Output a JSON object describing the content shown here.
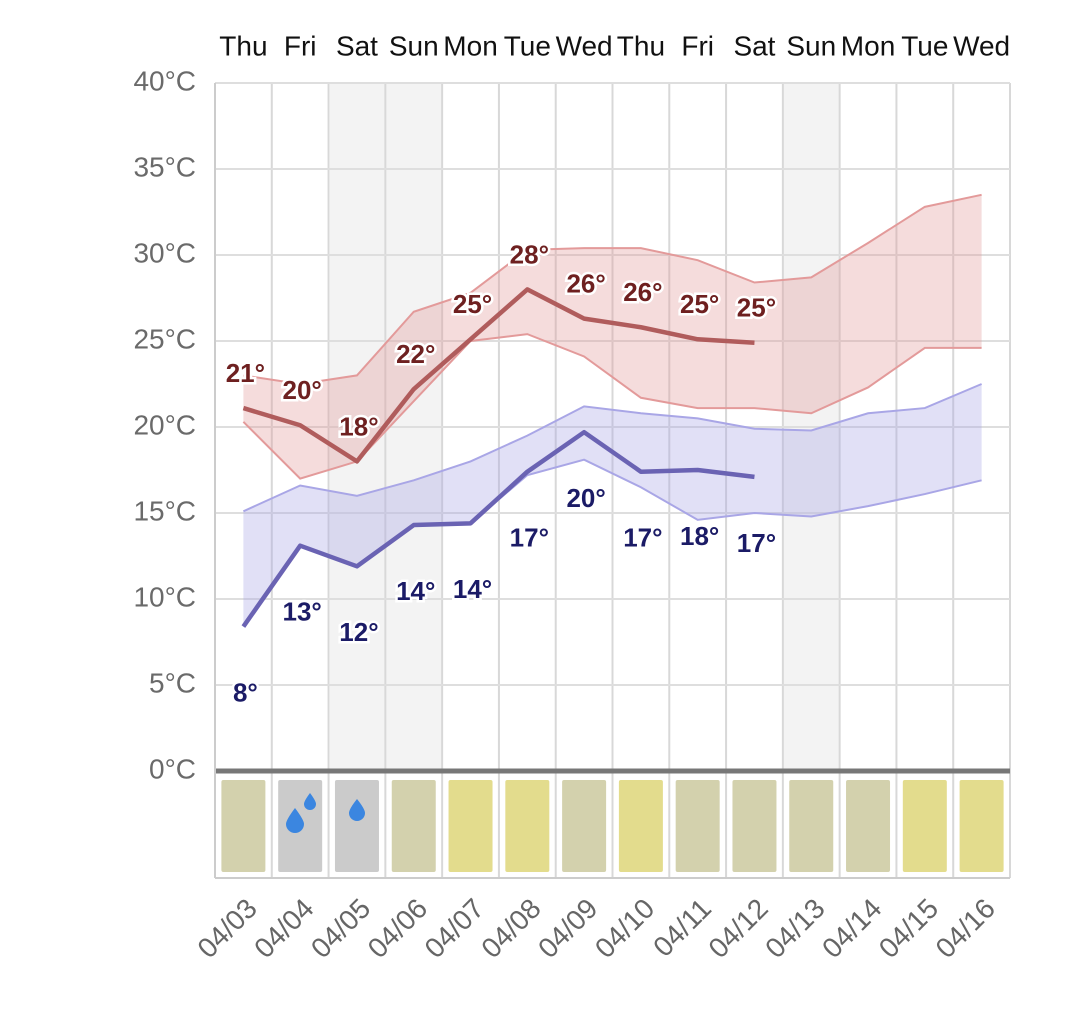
{
  "chart_data": {
    "type": "line",
    "categories": [
      "04/03",
      "04/04",
      "04/05",
      "04/06",
      "04/07",
      "04/08",
      "04/09",
      "04/10",
      "04/11",
      "04/12",
      "04/13",
      "04/14",
      "04/15",
      "04/16"
    ],
    "weekdays": [
      "Thu",
      "Fri",
      "Sat",
      "Sun",
      "Mon",
      "Tue",
      "Wed",
      "Thu",
      "Fri",
      "Sat",
      "Sun",
      "Mon",
      "Tue",
      "Wed"
    ],
    "ylim": [
      0,
      40
    ],
    "yticks": [
      {
        "value": 0,
        "label": "0°C"
      },
      {
        "value": 5,
        "label": "5°C"
      },
      {
        "value": 10,
        "label": "10°C"
      },
      {
        "value": 15,
        "label": "15°C"
      },
      {
        "value": 20,
        "label": "20°C"
      },
      {
        "value": 25,
        "label": "25°C"
      },
      {
        "value": 30,
        "label": "30°C"
      },
      {
        "value": 35,
        "label": "35°C"
      },
      {
        "value": 40,
        "label": "40°C"
      }
    ],
    "grid": true,
    "series": [
      {
        "color": "#b05c5c",
        "label_color": "#6e2020",
        "values": [
          21.1,
          20.1,
          18.0,
          22.2,
          25.1,
          28.0,
          26.3,
          25.8,
          25.1,
          24.9,
          null,
          null,
          null,
          null
        ],
        "value_labels": [
          "21°",
          "20°",
          "18°",
          "22°",
          "25°",
          "28°",
          "26°",
          "26°",
          "25°",
          "25°",
          null,
          null,
          null,
          null
        ]
      },
      {
        "color": "#6a63b3",
        "label_color": "#1b1b66",
        "values": [
          8.4,
          13.1,
          11.9,
          14.3,
          14.4,
          17.4,
          19.7,
          17.4,
          17.5,
          17.1,
          null,
          null,
          null,
          null
        ],
        "value_labels": [
          "8°",
          "13°",
          "12°",
          "14°",
          "14°",
          "17°",
          "20°",
          "17°",
          "18°",
          "17°",
          null,
          null,
          null,
          null
        ]
      }
    ],
    "bands": [
      {
        "color": "#e39a9a",
        "high": [
          23.0,
          22.5,
          23.0,
          26.7,
          27.8,
          30.3,
          30.4,
          30.4,
          29.7,
          28.4,
          28.7,
          30.7,
          32.8,
          33.5
        ],
        "low": [
          20.3,
          17.0,
          18.0,
          21.5,
          25.0,
          25.4,
          24.1,
          21.7,
          21.1,
          21.1,
          20.8,
          22.3,
          24.6,
          24.6
        ]
      },
      {
        "color": "#a9a6e6",
        "high": [
          15.1,
          16.6,
          16.0,
          16.9,
          18.0,
          19.5,
          21.2,
          20.8,
          20.5,
          19.9,
          19.8,
          20.8,
          21.1,
          22.5
        ],
        "low": [
          8.4,
          13.1,
          11.9,
          14.3,
          14.4,
          17.2,
          18.1,
          16.5,
          14.6,
          15.0,
          14.8,
          15.4,
          16.1,
          16.9
        ]
      }
    ],
    "tile_colors": [
      "#d3d1ad",
      "#cbcbcb",
      "#cbcbcb",
      "#d3d1ad",
      "#e3dc8d",
      "#e3dc8d",
      "#d3d1ad",
      "#e3dc8d",
      "#d3d1ad",
      "#d3d1ad",
      "#d3d1ad",
      "#d3d1ad",
      "#e3dc8d",
      "#e3dc8d"
    ]
  }
}
